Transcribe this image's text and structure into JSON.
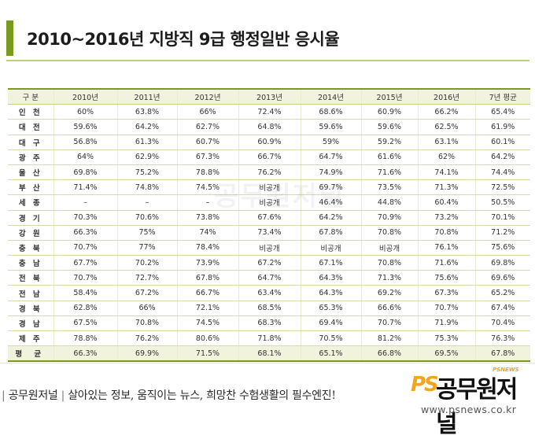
{
  "header": {
    "title": "2010~2016년 지방직 9급 행정일반 응시율",
    "accent_color": "#7a9a1e"
  },
  "table": {
    "columns": [
      "구 분",
      "2010년",
      "2011년",
      "2012년",
      "2013년",
      "2014년",
      "2015년",
      "2016년",
      "7년 평균"
    ],
    "rows": [
      [
        "인 천",
        "60%",
        "63.8%",
        "66%",
        "72.4%",
        "68.6%",
        "60.9%",
        "66.2%",
        "65.4%"
      ],
      [
        "대 전",
        "59.6%",
        "64.2%",
        "62.7%",
        "64.8%",
        "59.6%",
        "59.6%",
        "62.5%",
        "61.9%"
      ],
      [
        "대 구",
        "56.8%",
        "61.3%",
        "60.7%",
        "60.9%",
        "59%",
        "59.2%",
        "63.1%",
        "60.1%"
      ],
      [
        "광 주",
        "64%",
        "62.9%",
        "67.3%",
        "66.7%",
        "64.7%",
        "61.6%",
        "62%",
        "64.2%"
      ],
      [
        "울 산",
        "69.8%",
        "75.2%",
        "78.8%",
        "76.2%",
        "74.9%",
        "71.6%",
        "74.1%",
        "74.4%"
      ],
      [
        "부 산",
        "71.4%",
        "74.8%",
        "74.5%",
        "비공개",
        "69.7%",
        "73.5%",
        "71.3%",
        "72.5%"
      ],
      [
        "세 종",
        "–",
        "–",
        "–",
        "비공개",
        "46.4%",
        "44.8%",
        "60.4%",
        "50.5%"
      ],
      [
        "경 기",
        "70.3%",
        "70.6%",
        "73.8%",
        "67.6%",
        "64.2%",
        "70.9%",
        "73.2%",
        "70.1%"
      ],
      [
        "강 원",
        "66.3%",
        "75%",
        "74%",
        "73.4%",
        "67.8%",
        "70.8%",
        "70.8%",
        "71.2%"
      ],
      [
        "충 북",
        "70.7%",
        "77%",
        "78.4%",
        "비공개",
        "비공개",
        "비공개",
        "76.1%",
        "75.6%"
      ],
      [
        "충 남",
        "67.7%",
        "70.2%",
        "73.9%",
        "67.2%",
        "67.1%",
        "70.8%",
        "71.6%",
        "69.8%"
      ],
      [
        "전 북",
        "70.7%",
        "72.7%",
        "67.8%",
        "64.7%",
        "64.3%",
        "71.3%",
        "75.6%",
        "69.6%"
      ],
      [
        "전 남",
        "58.4%",
        "67.2%",
        "66.7%",
        "63.4%",
        "64.3%",
        "69.2%",
        "67.3%",
        "65.2%"
      ],
      [
        "경 북",
        "62.8%",
        "66%",
        "72.1%",
        "68.5%",
        "65.3%",
        "66.6%",
        "70.7%",
        "67.4%"
      ],
      [
        "경 남",
        "67.5%",
        "70.8%",
        "74.5%",
        "68.3%",
        "69.4%",
        "70.7%",
        "71.9%",
        "70.4%"
      ],
      [
        "제 주",
        "78.8%",
        "76.2%",
        "80.6%",
        "71.8%",
        "70.5%",
        "81.2%",
        "75.3%",
        "76.3%"
      ]
    ],
    "average_row": [
      "평 균",
      "66.3%",
      "69.9%",
      "71.5%",
      "68.1%",
      "65.1%",
      "66.8%",
      "69.5%",
      "67.8%"
    ]
  },
  "watermark": {
    "text": "공무원저널"
  },
  "footer": {
    "brand": "공무원저널",
    "tagline": "살아있는 정보, 움직이는 뉴스, 희망찬 수험생활의 필수엔진!",
    "separator": "|"
  },
  "logo": {
    "ps": "PS",
    "name": "공무원저널",
    "sub": "PSNEWS",
    "url": "www.psnews.co.kr",
    "ps_color": "#f4a51c"
  }
}
